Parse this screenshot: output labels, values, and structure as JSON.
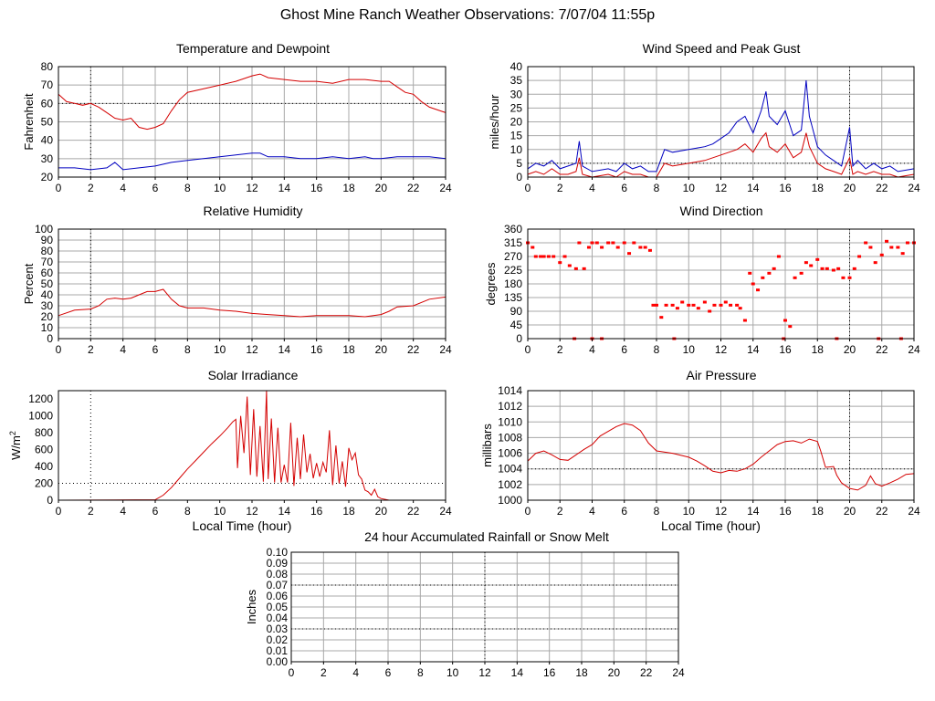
{
  "page": {
    "title": "Ghost Mine Ranch Weather Observations: 7/07/04 11:55p"
  },
  "chart_data": [
    {
      "id": "temp",
      "type": "line",
      "title": "Temperature and Dewpoint",
      "xlabel": "",
      "ylabel": "Fahrenheit",
      "xlim": [
        0,
        24
      ],
      "ylim": [
        20,
        80
      ],
      "x_ticks": [
        0,
        2,
        4,
        6,
        8,
        10,
        12,
        14,
        16,
        18,
        20,
        22,
        24
      ],
      "y_ticks": [
        20,
        30,
        40,
        50,
        60,
        70,
        80
      ],
      "dotted_x": [
        2
      ],
      "dotted_y": [
        60
      ],
      "grid": true,
      "series": [
        {
          "color": "#d40000",
          "x": [
            0,
            0.5,
            1,
            1.5,
            2,
            2.5,
            3,
            3.5,
            4,
            4.5,
            5,
            5.5,
            6,
            6.5,
            7,
            7.5,
            8,
            9,
            10,
            11,
            12,
            12.5,
            13,
            14,
            15,
            16,
            17,
            18,
            19,
            20,
            20.5,
            21,
            21.5,
            22,
            22.5,
            23,
            24
          ],
          "y": [
            65,
            61,
            60,
            59,
            60,
            58,
            55,
            52,
            51,
            52,
            47,
            46,
            47,
            49,
            56,
            62,
            66,
            68,
            70,
            72,
            75,
            76,
            74,
            73,
            72,
            72,
            71,
            73,
            73,
            72,
            72,
            69,
            66,
            65,
            61,
            58,
            55
          ]
        },
        {
          "color": "#0000c0",
          "x": [
            0,
            1,
            2,
            3,
            3.5,
            4,
            5,
            6,
            6.5,
            7,
            8,
            9,
            10,
            11,
            12,
            12.5,
            13,
            14,
            15,
            16,
            17,
            18,
            19,
            19.5,
            20,
            21,
            22,
            23,
            24
          ],
          "y": [
            25,
            25,
            24,
            25,
            28,
            24,
            25,
            26,
            27,
            28,
            29,
            30,
            31,
            32,
            33,
            33,
            31,
            31,
            30,
            30,
            31,
            30,
            31,
            30,
            30,
            31,
            31,
            31,
            30
          ]
        }
      ]
    },
    {
      "id": "wind",
      "type": "line",
      "title": "Wind Speed and Peak Gust",
      "xlabel": "",
      "ylabel": "miles/hour",
      "xlim": [
        0,
        24
      ],
      "ylim": [
        0,
        40
      ],
      "x_ticks": [
        0,
        2,
        4,
        6,
        8,
        10,
        12,
        14,
        16,
        18,
        20,
        22,
        24
      ],
      "y_ticks": [
        0,
        5,
        10,
        15,
        20,
        25,
        30,
        35,
        40
      ],
      "dotted_x": [
        20
      ],
      "dotted_y": [
        5
      ],
      "grid": true,
      "series": [
        {
          "color": "#0000c0",
          "x": [
            0,
            0.5,
            1,
            1.5,
            2,
            2.5,
            3,
            3.2,
            3.4,
            4,
            5,
            5.5,
            6,
            6.5,
            7,
            7.5,
            8,
            8.5,
            9,
            10,
            11,
            11.5,
            12,
            12.5,
            13,
            13.5,
            14,
            14.5,
            14.8,
            15,
            15.5,
            16,
            16.5,
            17,
            17.3,
            17.5,
            18,
            18.5,
            19,
            19.5,
            20,
            20.2,
            20.5,
            21,
            21.5,
            22,
            22.5,
            23,
            24
          ],
          "y": [
            3,
            5,
            4,
            6,
            3,
            4,
            5,
            13,
            4,
            2,
            3,
            2,
            5,
            3,
            4,
            2,
            2,
            10,
            9,
            10,
            11,
            12,
            14,
            16,
            20,
            22,
            16,
            24,
            31,
            22,
            19,
            24,
            15,
            17,
            35,
            22,
            11,
            8,
            6,
            4,
            18,
            4,
            6,
            3,
            5,
            3,
            4,
            2,
            3
          ]
        },
        {
          "color": "#d40000",
          "x": [
            0,
            0.5,
            1,
            1.5,
            2,
            2.5,
            3,
            3.2,
            3.4,
            4,
            5,
            5.5,
            6,
            6.5,
            7,
            7.5,
            8,
            8.5,
            9,
            10,
            11,
            11.5,
            12,
            12.5,
            13,
            13.5,
            14,
            14.5,
            14.8,
            15,
            15.5,
            16,
            16.5,
            17,
            17.3,
            17.5,
            18,
            18.5,
            19,
            19.5,
            20,
            20.2,
            20.5,
            21,
            21.5,
            22,
            22.5,
            23,
            24
          ],
          "y": [
            1,
            2,
            1,
            3,
            1,
            1,
            2,
            7,
            1,
            0,
            1,
            0,
            2,
            1,
            1,
            0,
            0,
            5,
            4,
            5,
            6,
            7,
            8,
            9,
            10,
            12,
            9,
            14,
            16,
            11,
            9,
            12,
            7,
            9,
            16,
            11,
            5,
            3,
            2,
            1,
            7,
            1,
            2,
            1,
            2,
            1,
            1,
            0,
            1
          ]
        }
      ]
    },
    {
      "id": "humidity",
      "type": "line",
      "title": "Relative Humidity",
      "xlabel": "",
      "ylabel": "Percent",
      "xlim": [
        0,
        24
      ],
      "ylim": [
        0,
        100
      ],
      "x_ticks": [
        0,
        2,
        4,
        6,
        8,
        10,
        12,
        14,
        16,
        18,
        20,
        22,
        24
      ],
      "y_ticks": [
        0,
        10,
        20,
        30,
        40,
        50,
        60,
        70,
        80,
        90,
        100
      ],
      "dotted_x": [
        2
      ],
      "dotted_y": [],
      "grid": true,
      "series": [
        {
          "color": "#d40000",
          "x": [
            0,
            1,
            2,
            2.5,
            3,
            3.5,
            4,
            4.5,
            5,
            5.5,
            6,
            6.5,
            7,
            7.5,
            8,
            9,
            10,
            11,
            12,
            13,
            14,
            15,
            16,
            17,
            18,
            19,
            20,
            20.5,
            21,
            22,
            23,
            24
          ],
          "y": [
            21,
            26,
            27,
            30,
            36,
            37,
            36,
            37,
            40,
            43,
            43,
            45,
            36,
            30,
            28,
            28,
            26,
            25,
            23,
            22,
            21,
            20,
            21,
            21,
            21,
            20,
            22,
            25,
            29,
            30,
            36,
            38
          ]
        }
      ]
    },
    {
      "id": "direction",
      "type": "scatter",
      "title": "Wind Direction",
      "xlabel": "",
      "ylabel": "degrees",
      "xlim": [
        0,
        24
      ],
      "ylim": [
        0,
        360
      ],
      "x_ticks": [
        0,
        2,
        4,
        6,
        8,
        10,
        12,
        14,
        16,
        18,
        20,
        22,
        24
      ],
      "y_ticks": [
        0,
        45,
        90,
        135,
        180,
        225,
        270,
        315,
        360
      ],
      "dotted_x": [
        20
      ],
      "dotted_y": [],
      "grid": true,
      "series": [
        {
          "color": "#ff0000",
          "x": [
            0,
            0.3,
            0.5,
            0.8,
            1,
            1.3,
            1.6,
            2,
            2.3,
            2.6,
            3,
            3.2,
            3.5,
            3.8,
            4,
            4.3,
            4.6,
            5,
            5.3,
            5.6,
            6,
            6.3,
            6.6,
            7,
            7.3,
            7.6,
            7.8,
            8,
            8.3,
            8.6,
            9,
            9.3,
            9.6,
            10,
            10.3,
            10.6,
            11,
            11.3,
            11.6,
            12,
            12.3,
            12.6,
            13,
            13.2,
            13.5,
            13.8,
            14,
            14.3,
            14.6,
            15,
            15.3,
            15.6,
            16,
            16.3,
            16.6,
            17,
            17.3,
            17.6,
            18,
            18.3,
            18.6,
            19,
            19.3,
            19.6,
            20,
            20.3,
            20.6,
            21,
            21.3,
            21.6,
            22,
            22.3,
            22.6,
            23,
            23.3,
            23.6,
            24,
            2.9,
            4.0,
            4.6,
            9.1,
            15.9,
            19.2,
            21.8,
            23.2
          ],
          "y": [
            315,
            300,
            270,
            270,
            270,
            270,
            270,
            250,
            270,
            240,
            230,
            315,
            230,
            300,
            315,
            315,
            300,
            315,
            315,
            300,
            315,
            280,
            315,
            300,
            300,
            290,
            110,
            110,
            70,
            110,
            110,
            100,
            120,
            110,
            110,
            100,
            120,
            90,
            110,
            110,
            120,
            110,
            110,
            100,
            60,
            215,
            180,
            160,
            200,
            215,
            230,
            270,
            60,
            40,
            200,
            215,
            250,
            240,
            260,
            230,
            230,
            225,
            230,
            200,
            200,
            230,
            270,
            315,
            300,
            250,
            275,
            320,
            300,
            300,
            280,
            315,
            315,
            0,
            0,
            0,
            0,
            0,
            0,
            0,
            0
          ]
        }
      ]
    },
    {
      "id": "solar",
      "type": "line",
      "title": "Solar Irradiance",
      "xlabel": "Local Time (hour)",
      "ylabel": "W/m",
      "ylabel_sup": "2",
      "xlim": [
        0,
        24
      ],
      "ylim": [
        0,
        1300
      ],
      "x_ticks": [
        0,
        2,
        4,
        6,
        8,
        10,
        12,
        14,
        16,
        18,
        20,
        22,
        24
      ],
      "y_ticks": [
        0,
        200,
        400,
        600,
        800,
        1000,
        1200
      ],
      "dotted_x": [
        2
      ],
      "dotted_y": [
        200
      ],
      "grid": false,
      "series": [
        {
          "color": "#d40000",
          "x": [
            0,
            6,
            6.5,
            7,
            7.5,
            8,
            8.5,
            9,
            9.5,
            10,
            10.5,
            10.8,
            11,
            11.1,
            11.3,
            11.5,
            11.7,
            11.9,
            12.1,
            12.3,
            12.5,
            12.7,
            12.9,
            13.0,
            13.2,
            13.4,
            13.6,
            13.8,
            14.0,
            14.2,
            14.4,
            14.6,
            14.8,
            15.0,
            15.2,
            15.4,
            15.6,
            15.8,
            16.0,
            16.2,
            16.4,
            16.6,
            16.8,
            17.0,
            17.2,
            17.4,
            17.6,
            17.8,
            18.0,
            18.2,
            18.4,
            18.6,
            18.8,
            19.0,
            19.2,
            19.4,
            19.6,
            19.8,
            20.0,
            20.5,
            24
          ],
          "y": [
            0,
            5,
            60,
            150,
            260,
            370,
            470,
            570,
            670,
            760,
            860,
            930,
            960,
            380,
            1000,
            560,
            1230,
            300,
            1080,
            280,
            880,
            220,
            1300,
            250,
            970,
            210,
            860,
            210,
            420,
            210,
            920,
            170,
            740,
            250,
            780,
            330,
            550,
            260,
            440,
            280,
            450,
            330,
            830,
            180,
            650,
            200,
            460,
            160,
            620,
            480,
            560,
            300,
            250,
            120,
            100,
            60,
            130,
            40,
            20,
            0,
            0
          ]
        }
      ]
    },
    {
      "id": "pressure",
      "type": "line",
      "title": "Air Pressure",
      "xlabel": "Local Time (hour)",
      "ylabel": "millibars",
      "xlim": [
        0,
        24
      ],
      "ylim": [
        1000,
        1014
      ],
      "x_ticks": [
        0,
        2,
        4,
        6,
        8,
        10,
        12,
        14,
        16,
        18,
        20,
        22,
        24
      ],
      "y_ticks": [
        1000,
        1002,
        1004,
        1006,
        1008,
        1010,
        1012,
        1014
      ],
      "dotted_x": [
        20
      ],
      "dotted_y": [
        1004
      ],
      "grid": true,
      "series": [
        {
          "color": "#d40000",
          "x": [
            0,
            0.5,
            1,
            1.5,
            2,
            2.5,
            3,
            3.5,
            4,
            4.5,
            5,
            5.5,
            6,
            6.5,
            7,
            7.5,
            8,
            9,
            10,
            10.5,
            11,
            11.5,
            12,
            12.5,
            13,
            13.5,
            14,
            14.5,
            15,
            15.5,
            16,
            16.5,
            17,
            17.5,
            18,
            18.2,
            18.5,
            19,
            19.2,
            19.5,
            20,
            20.5,
            21,
            21.3,
            21.6,
            22,
            22.5,
            23,
            23.5,
            24
          ],
          "y": [
            1005,
            1006,
            1006.3,
            1005.8,
            1005.2,
            1005.1,
            1005.8,
            1006.5,
            1007.1,
            1008.2,
            1008.8,
            1009.4,
            1009.8,
            1009.6,
            1008.9,
            1007.3,
            1006.3,
            1006,
            1005.5,
            1005,
            1004.4,
            1003.7,
            1003.5,
            1003.8,
            1003.7,
            1004,
            1004.6,
            1005.5,
            1006.3,
            1007.1,
            1007.5,
            1007.6,
            1007.3,
            1007.8,
            1007.5,
            1006.3,
            1004.2,
            1004.3,
            1003.2,
            1002.2,
            1001.5,
            1001.3,
            1001.9,
            1003.1,
            1002.1,
            1001.8,
            1002.2,
            1002.7,
            1003.3,
            1003.4
          ]
        }
      ]
    },
    {
      "id": "rain",
      "type": "line",
      "title": "24 hour Accumulated Rainfall or Snow Melt",
      "xlabel": "",
      "ylabel": "Inches",
      "xlim": [
        0,
        24
      ],
      "ylim": [
        0,
        0.1
      ],
      "x_ticks": [
        0,
        2,
        4,
        6,
        8,
        10,
        12,
        14,
        16,
        18,
        20,
        22,
        24
      ],
      "y_ticks": [
        0.0,
        0.01,
        0.02,
        0.03,
        0.04,
        0.05,
        0.06,
        0.07,
        0.08,
        0.09,
        0.1
      ],
      "y_tick_labels": [
        "0.00",
        "0.01",
        "0.02",
        "0.03",
        "0.04",
        "0.05",
        "0.06",
        "0.07",
        "0.08",
        "0.09",
        "0.10"
      ],
      "dotted_x": [
        12
      ],
      "dotted_y": [
        0.03,
        0.07
      ],
      "grid": true,
      "series": [
        {
          "color": "#d40000",
          "x": [
            0,
            24
          ],
          "y": [
            0,
            0
          ]
        }
      ]
    }
  ]
}
